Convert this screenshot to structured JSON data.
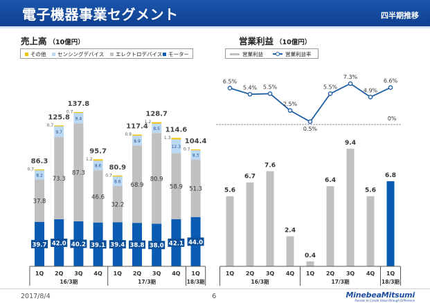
{
  "header": {
    "title": "電子機器事業セグメント",
    "subtitle": "四半期推移"
  },
  "sales": {
    "title": "売上高",
    "unit": "（10億円）",
    "legend": [
      {
        "label": "その他",
        "color": "#f2c200"
      },
      {
        "label": "センシングデバイス",
        "color": "#bcd9f4"
      },
      {
        "label": "エレクトロデバイス",
        "color": "#c0c0c0"
      },
      {
        "label": "モーター",
        "color": "#0a5cb2"
      }
    ]
  },
  "profit": {
    "title": "営業利益",
    "unit": "（10億円）",
    "legend": [
      {
        "label": "営業利益",
        "color": "#c0c0c0"
      },
      {
        "label": "営業利益率",
        "color": "#1f5fa5"
      }
    ]
  },
  "chart_data": [
    {
      "type": "bar",
      "stacked": true,
      "title": "売上高",
      "unit": "10億円",
      "categories": [
        "1Q",
        "2Q",
        "3Q",
        "4Q",
        "1Q",
        "2Q",
        "3Q",
        "4Q",
        "1Q"
      ],
      "groups": [
        {
          "label": "16/3期",
          "start": 0,
          "end": 3
        },
        {
          "label": "17/3期",
          "start": 4,
          "end": 7
        },
        {
          "label": "18/3期",
          "start": 8,
          "end": 8
        }
      ],
      "series": [
        {
          "name": "モーター",
          "color": "#0a5cb2",
          "values": [
            39.7,
            42.0,
            40.2,
            39.1,
            39.4,
            38.8,
            38.0,
            42.1,
            44.0
          ]
        },
        {
          "name": "エレクトロデバイス",
          "color": "#c0c0c0",
          "values": [
            37.8,
            73.3,
            87.3,
            46.6,
            32.2,
            68.9,
            80.9,
            58.9,
            51.3
          ]
        },
        {
          "name": "センシングデバイス",
          "color": "#bcd9f4",
          "values": [
            8.2,
            9.7,
            9.4,
            8.6,
            8.6,
            8.9,
            8.5,
            12.3,
            8.3
          ]
        },
        {
          "name": "その他",
          "color": "#f2c200",
          "values": [
            0.7,
            0.7,
            0.7,
            1.2,
            0.7,
            0.9,
            1.2,
            1.3,
            0.7
          ]
        }
      ],
      "totals": [
        86.3,
        125.8,
        137.8,
        95.7,
        80.9,
        117.4,
        128.7,
        114.6,
        104.4
      ],
      "ylim": [
        0,
        145
      ]
    },
    {
      "type": "bar+line",
      "title": "営業利益",
      "unit": "10億円",
      "categories": [
        "1Q",
        "2Q",
        "3Q",
        "4Q",
        "1Q",
        "2Q",
        "3Q",
        "4Q",
        "1Q"
      ],
      "groups": [
        {
          "label": "16/3期",
          "start": 0,
          "end": 3
        },
        {
          "label": "17/3期",
          "start": 4,
          "end": 7
        },
        {
          "label": "18/3期",
          "start": 8,
          "end": 8
        }
      ],
      "series": [
        {
          "name": "営業利益",
          "type": "bar",
          "values": [
            5.6,
            6.7,
            7.6,
            2.4,
            0.4,
            6.4,
            9.4,
            5.6,
            6.8
          ],
          "labels": [
            "5.6",
            "6.7",
            "7.6",
            "2.4",
            "0.4",
            "6.4",
            "9.4",
            "5.6",
            "6.8"
          ],
          "colors": [
            "#c0c0c0",
            "#c0c0c0",
            "#c0c0c0",
            "#c0c0c0",
            "#c0c0c0",
            "#c0c0c0",
            "#c0c0c0",
            "#c0c0c0",
            "#0a5cb2"
          ]
        },
        {
          "name": "営業利益率",
          "type": "line",
          "color": "#1f5fa5",
          "values": [
            6.5,
            5.4,
            5.5,
            2.5,
            0.5,
            5.5,
            7.3,
            4.9,
            6.6
          ],
          "labels": [
            "6.5%",
            "5.4%",
            "5.5%",
            "2.5%",
            "0.5%",
            "5.5%",
            "7.3%",
            "4.9%",
            "6.6%"
          ]
        }
      ],
      "ylim": [
        0,
        10
      ],
      "line_ylim": [
        0,
        8
      ],
      "reference_line": {
        "value": 0,
        "label": "0%",
        "style": "dashed"
      }
    }
  ],
  "footer": {
    "date": "2017/8/4",
    "page": "6",
    "brand": "MinebeaMitsumi",
    "tagline": "Passion to Create Value through Difference"
  }
}
